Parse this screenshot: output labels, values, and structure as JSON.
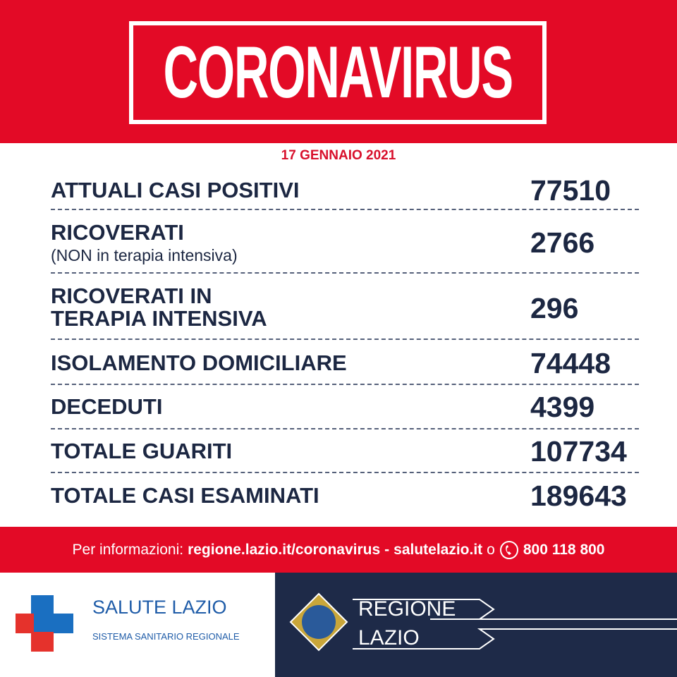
{
  "header": {
    "title": "CORONAVIRUS",
    "date": "17 GENNAIO 2021"
  },
  "rows": [
    {
      "label": [
        "ATTUALI CASI POSITIVI"
      ],
      "value": 77510
    },
    {
      "label": [
        "RICOVERATI"
      ],
      "note": "(NON in terapia intensiva)",
      "value": 2766
    },
    {
      "label": [
        "RICOVERATI IN",
        "TERAPIA INTENSIVA"
      ],
      "value": 296
    },
    {
      "label": [
        "ISOLAMENTO DOMICILIARE"
      ],
      "value": 74448
    },
    {
      "label": [
        "DECEDUTI"
      ],
      "value": 4399
    },
    {
      "label": [
        "TOTALE GUARITI"
      ],
      "value": 107734
    },
    {
      "label": [
        "TOTALE CASI ESAMINATI"
      ],
      "value": 189643
    }
  ],
  "footer": {
    "intro": "Per informazioni:",
    "link1": "regione.lazio.it/coronavirus",
    "sep": "-",
    "link2": "salutelazio.it",
    "or": "o",
    "phone": "800 118 800"
  },
  "logos": {
    "left_title": "SALUTE LAZIO",
    "left_subtitle": "SISTEMA SANITARIO REGIONALE",
    "right_line1": "REGIONE",
    "right_line2": "LAZIO"
  }
}
